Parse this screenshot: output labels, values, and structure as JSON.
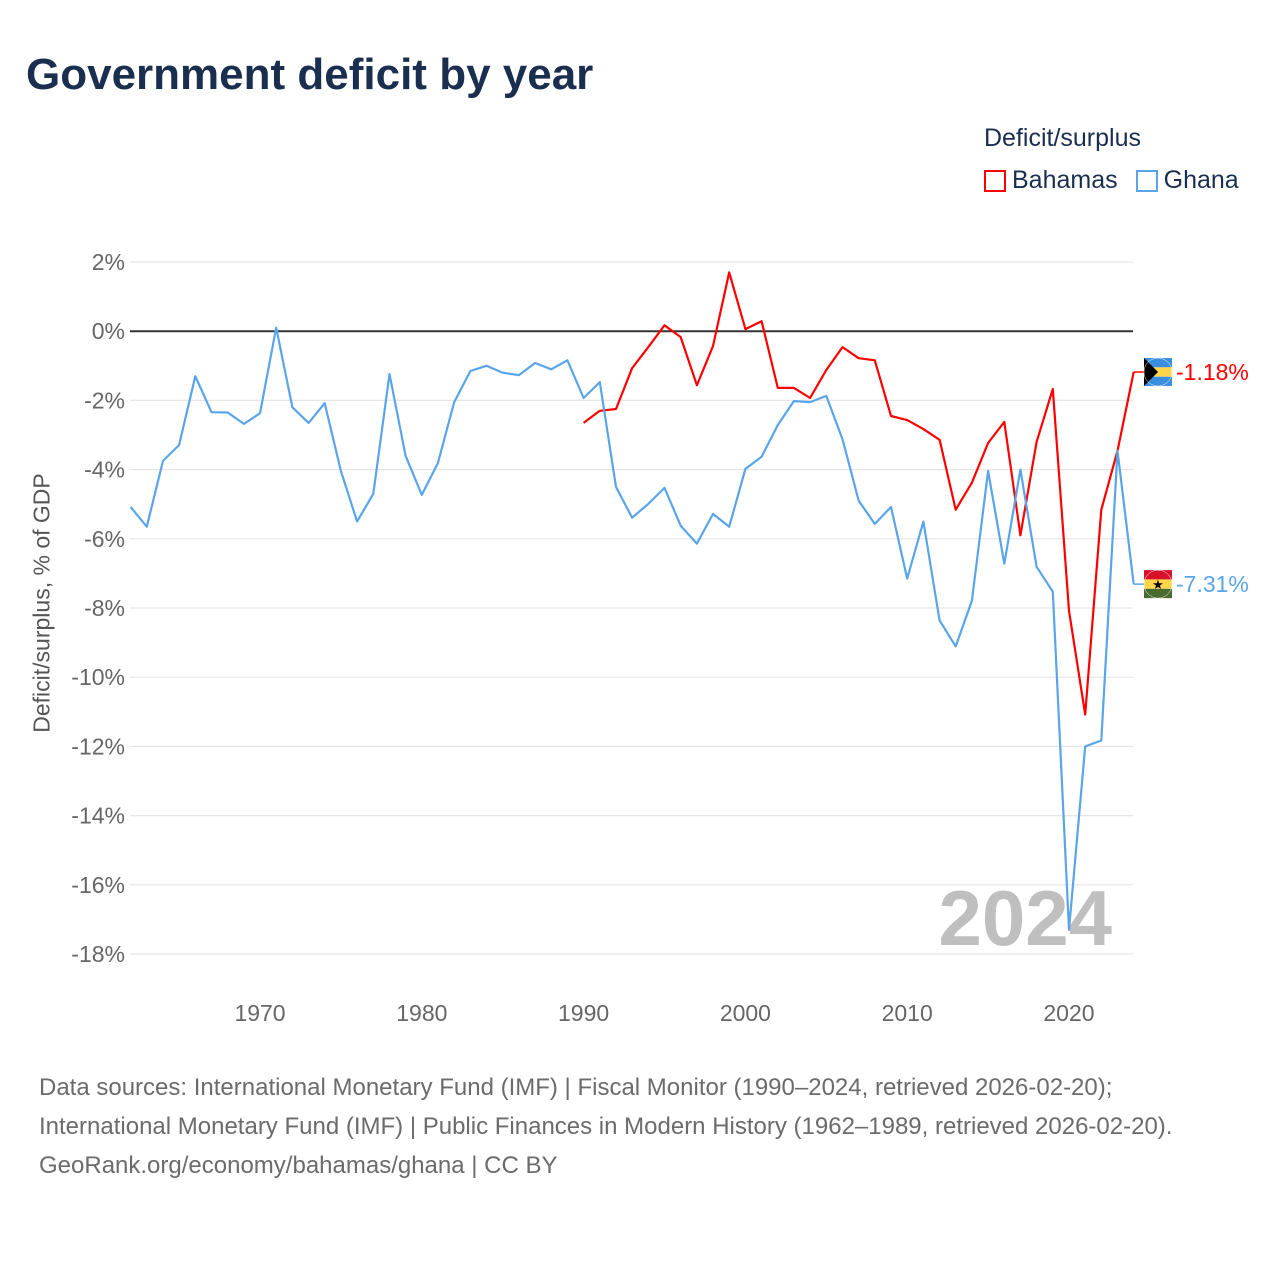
{
  "title": "Government deficit by year",
  "legend": {
    "title": "Deficit/surplus",
    "items": [
      {
        "label": "Bahamas",
        "color": "#ff0000"
      },
      {
        "label": "Ghana",
        "color": "#5aa5ea"
      }
    ]
  },
  "footer": {
    "line1": "Data sources: International Monetary Fund (IMF) | Fiscal Monitor (1990–2024, retrieved 2026-02-20); International Monetary Fund (IMF) | Public Finances in Modern History (1962–1989, retrieved 2026-02-20).",
    "line2": "GeoRank.org/economy/bahamas/ghana | CC BY"
  },
  "chart_data": {
    "type": "line",
    "title": "Government deficit by year",
    "ylabel": "Deficit/surplus, % of GDP",
    "xlabel": "",
    "xlim": [
      1962,
      2024
    ],
    "ylim": [
      -18,
      2
    ],
    "yticks": [
      2,
      0,
      -2,
      -4,
      -6,
      -8,
      -10,
      -12,
      -14,
      -16,
      -18
    ],
    "ytick_labels": [
      "2%",
      "0%",
      "-2%",
      "-4%",
      "-6%",
      "-8%",
      "-10%",
      "-12%",
      "-14%",
      "-16%",
      "-18%"
    ],
    "xticks": [
      1970,
      1980,
      1990,
      2000,
      2010,
      2020
    ],
    "xtick_labels": [
      "1970",
      "1980",
      "1990",
      "2000",
      "2010",
      "2020"
    ],
    "watermark": "2024",
    "series": [
      {
        "name": "Bahamas",
        "color": "#ff0000",
        "end_label": "-1.18%",
        "start": 1990,
        "values": [
          -2.65,
          -2.3,
          -2.25,
          -1.07,
          -0.46,
          0.17,
          -0.17,
          -1.56,
          -0.43,
          1.7,
          0.06,
          0.29,
          -1.64,
          -1.64,
          -1.93,
          -1.12,
          -0.46,
          -0.78,
          -0.84,
          -2.45,
          -2.57,
          -2.83,
          -3.14,
          -5.16,
          -4.38,
          -3.23,
          -2.62,
          -5.9,
          -3.2,
          -1.67,
          -8.08,
          -11.08,
          -5.16,
          -3.46,
          -1.18
        ]
      },
      {
        "name": "Ghana",
        "color": "#5aa5ea",
        "end_label": "-7.31%",
        "start": 1962,
        "values": [
          -5.08,
          -5.65,
          -3.75,
          -3.29,
          -1.3,
          -2.34,
          -2.35,
          -2.68,
          -2.37,
          0.1,
          -2.2,
          -2.65,
          -2.08,
          -4.04,
          -5.5,
          -4.7,
          -1.24,
          -3.6,
          -4.73,
          -3.8,
          -2.05,
          -1.15,
          -1.0,
          -1.2,
          -1.27,
          -0.92,
          -1.1,
          -0.84,
          -1.93,
          -1.47,
          -4.5,
          -5.39,
          -4.99,
          -4.53,
          -5.62,
          -6.14,
          -5.28,
          -5.65,
          -3.98,
          -3.63,
          -2.71,
          -2.02,
          -2.05,
          -1.87,
          -3.12,
          -4.9,
          -5.57,
          -5.08,
          -7.15,
          -5.5,
          -8.36,
          -9.11,
          -7.79,
          -4.04,
          -6.72,
          -4.0,
          -6.81,
          -7.53,
          -17.3,
          -12.0,
          -11.83,
          -3.46,
          -7.31
        ]
      }
    ]
  }
}
